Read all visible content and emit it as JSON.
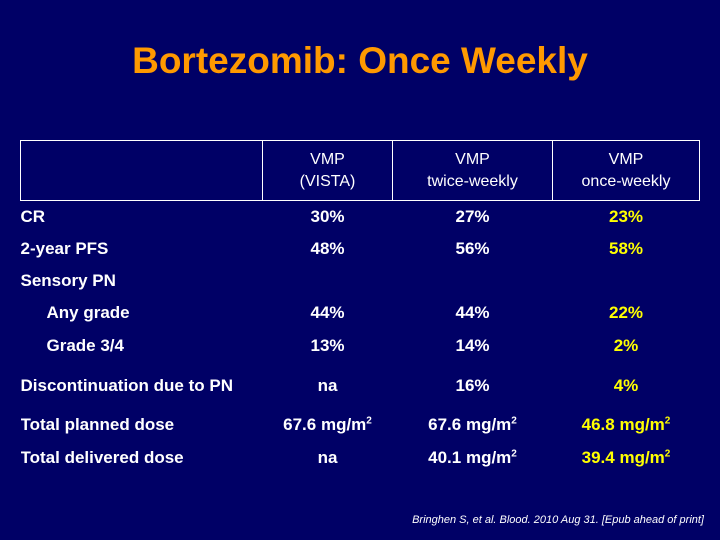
{
  "title": "Bortezomib: Once Weekly",
  "header": {
    "col1_line1": "VMP",
    "col1_line2": "(VISTA)",
    "col2_line1": "VMP",
    "col2_line2": "twice-weekly",
    "col3_line1": "VMP",
    "col3_line2": "once-weekly"
  },
  "rows": {
    "cr": {
      "label": "CR",
      "v1": "30%",
      "v2": "27%",
      "v3": "23%"
    },
    "pfs": {
      "label": "2-year PFS",
      "v1": "48%",
      "v2": "56%",
      "v3": "58%"
    },
    "sensory": {
      "label": "Sensory PN"
    },
    "any_grade": {
      "label": "Any grade",
      "v1": "44%",
      "v2": "44%",
      "v3": "22%"
    },
    "grade34": {
      "label": "Grade 3/4",
      "v1": "13%",
      "v2": "14%",
      "v3": "2%"
    },
    "discontinuation": {
      "label": "Discontinuation due to PN",
      "v1": "na",
      "v2": "16%",
      "v3": "4%"
    },
    "planned": {
      "label": "Total planned dose",
      "v1": "67.6 mg/m",
      "v2": "67.6 mg/m",
      "v3": "46.8 mg/m",
      "sup": "2"
    },
    "delivered": {
      "label": "Total delivered dose",
      "v1": "na",
      "v2": "40.1 mg/m",
      "v3": "39.4 mg/m",
      "sup": "2"
    }
  },
  "footnote": "Bringhen S, et al. Blood. 2010 Aug 31. [Epub ahead of print]",
  "colors": {
    "background": "#000066",
    "title": "#ff9900",
    "highlight": "#ffff00",
    "text": "#ffffff"
  }
}
